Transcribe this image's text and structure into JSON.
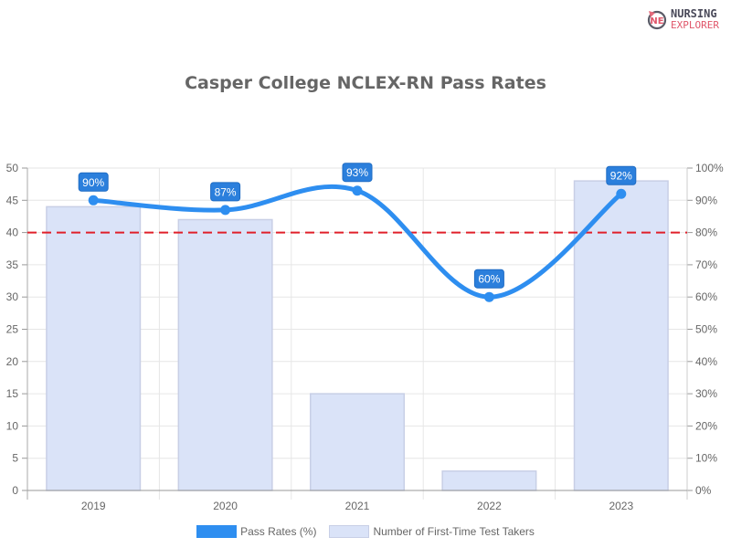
{
  "logo": {
    "line1": "NURSING",
    "line2": "EXPLORER",
    "icon": "nursing-explorer-logo-icon"
  },
  "title": "Casper College NCLEX-RN Pass Rates",
  "legend": {
    "pass_rates": "Pass Rates (%)",
    "test_takers": "Number of First-Time Test Takers"
  },
  "colors": {
    "line": "#2e8ef0",
    "bar_fill": "#dae3f8",
    "bar_border": "#c8cfe6",
    "threshold": "#e0202a",
    "label_bg": "#2b7fdc"
  },
  "chart_data": {
    "type": "bar+line",
    "title": "Casper College NCLEX-RN Pass Rates",
    "categories": [
      "2019",
      "2020",
      "2021",
      "2022",
      "2023"
    ],
    "series": [
      {
        "name": "Pass Rates (%)",
        "type": "line",
        "axis": "right",
        "values": [
          90,
          87,
          93,
          60,
          92
        ],
        "labels": [
          "90%",
          "87%",
          "93%",
          "60%",
          "92%"
        ]
      },
      {
        "name": "Number of First-Time Test Takers",
        "type": "bar",
        "axis": "left",
        "values": [
          44,
          42,
          15,
          3,
          48
        ]
      }
    ],
    "left_axis": {
      "ylim": [
        0,
        50
      ],
      "ticks": [
        "0",
        "5",
        "10",
        "15",
        "20",
        "25",
        "30",
        "35",
        "40",
        "45",
        "50"
      ]
    },
    "right_axis": {
      "ylim": [
        0,
        100
      ],
      "ticks": [
        "0%",
        "10%",
        "20%",
        "30%",
        "40%",
        "50%",
        "60%",
        "70%",
        "80%",
        "90%",
        "100%"
      ]
    },
    "threshold": {
      "value": 80,
      "axis": "right",
      "style": "dashed",
      "color": "#e0202a"
    },
    "grid": true,
    "legend_position": "bottom"
  }
}
